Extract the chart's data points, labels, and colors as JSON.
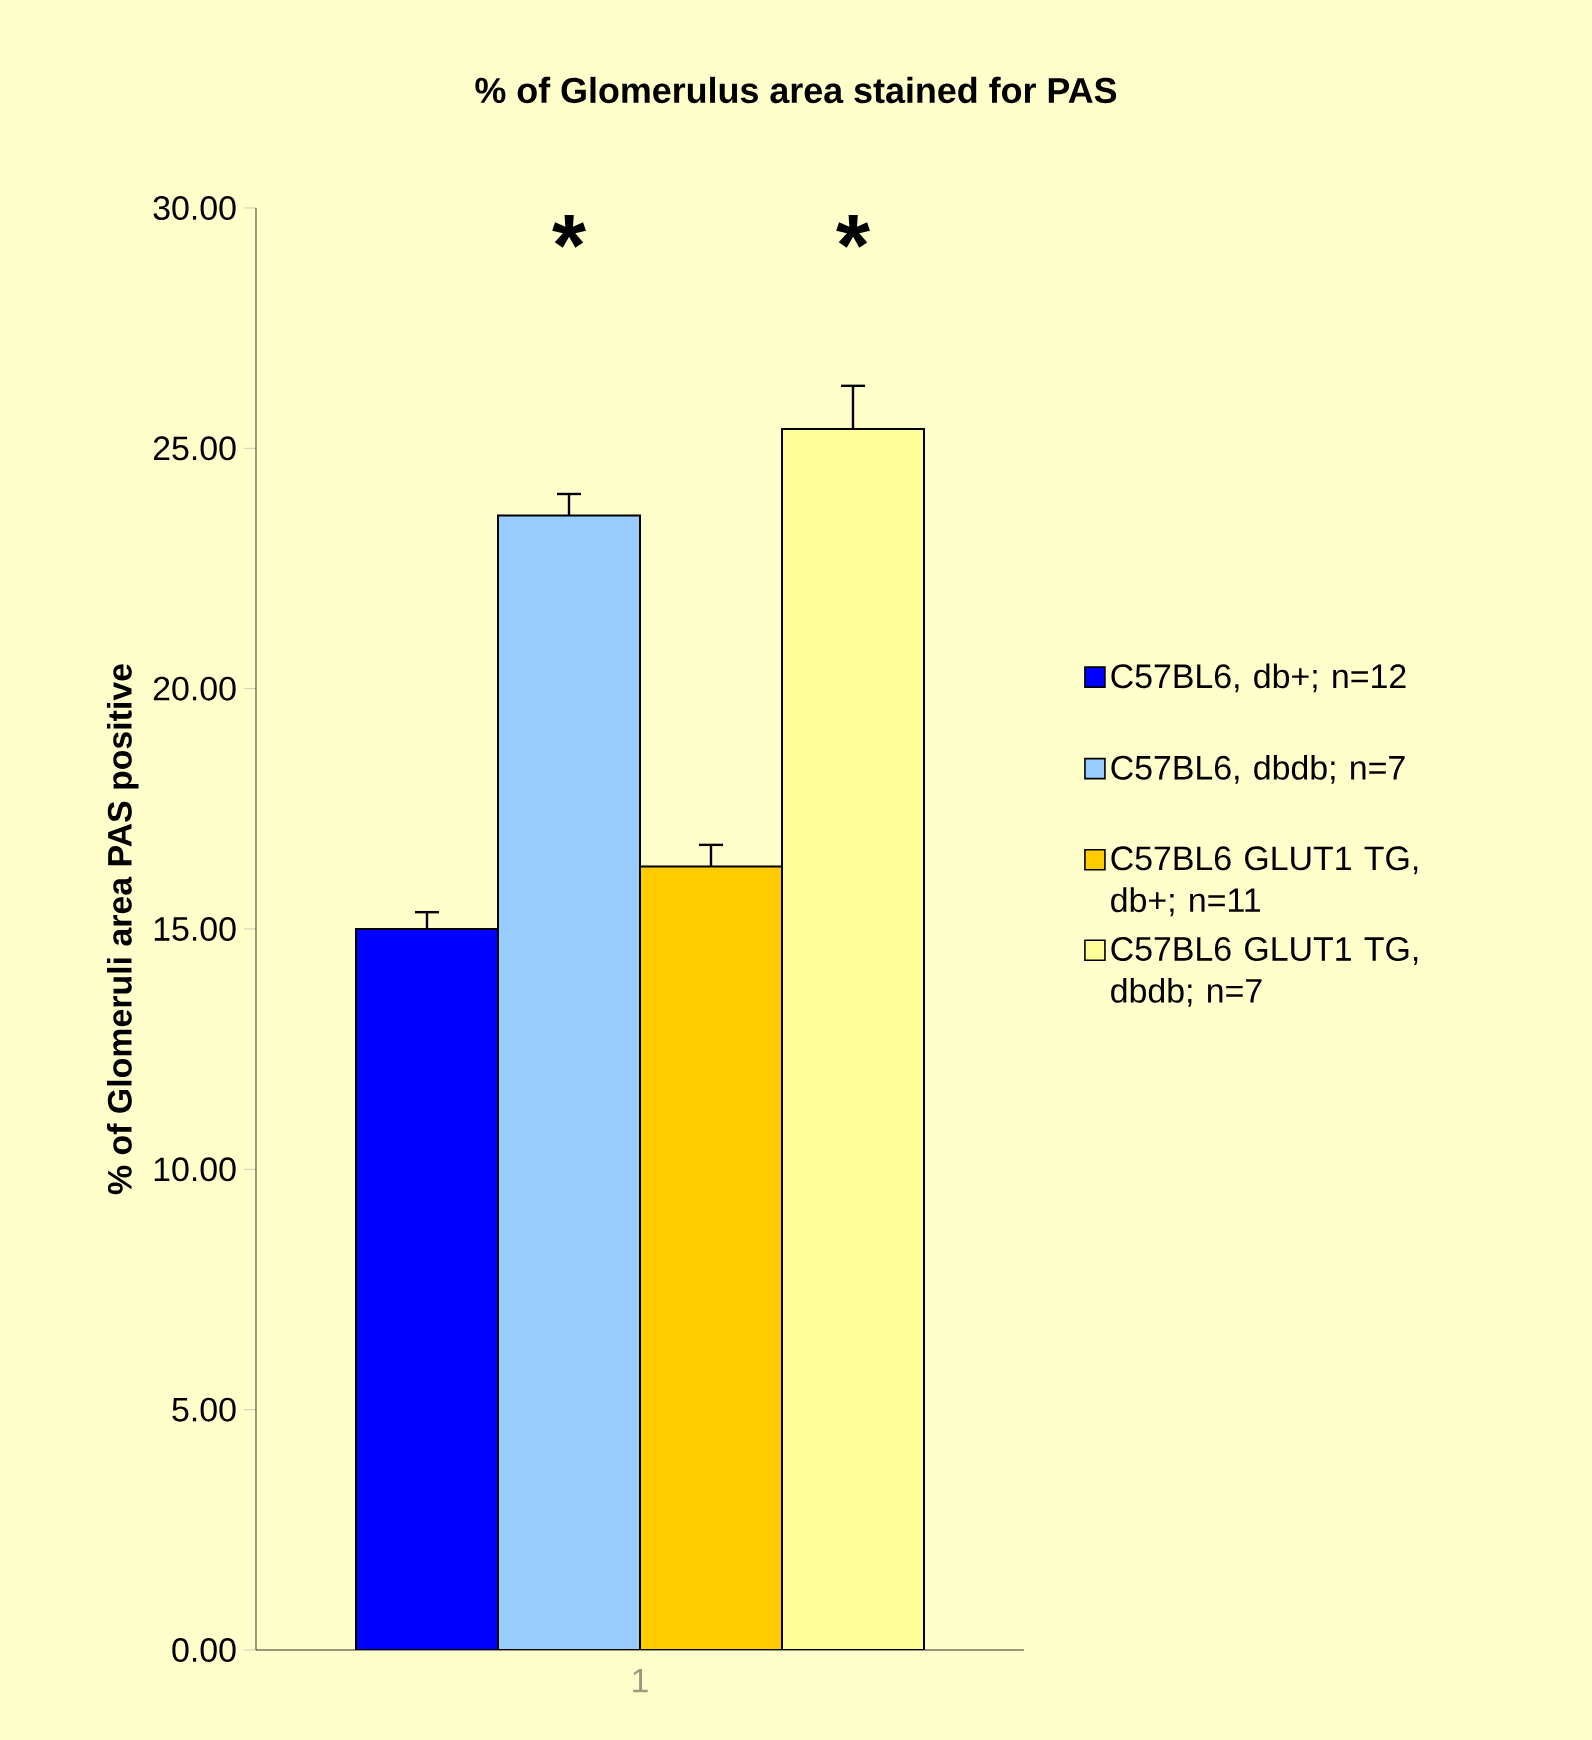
{
  "chart_data": {
    "type": "bar",
    "title": "% of Glomerulus area stained for PAS",
    "ylabel": "% of Glomeruli area PAS positive",
    "categories": [
      "1"
    ],
    "series": [
      {
        "name": "C57BL6, db+; n=12",
        "color": "#0000ff",
        "values": [
          15.0
        ],
        "errors": [
          0.35
        ]
      },
      {
        "name": "C57BL6, dbdb; n=7",
        "color": "#99ccff",
        "values": [
          23.6
        ],
        "errors": [
          0.45
        ]
      },
      {
        "name": "C57BL6 GLUT1 TG, db+; n=11",
        "color": "#ffcc00",
        "values": [
          16.3
        ],
        "errors": [
          0.45
        ]
      },
      {
        "name": "C57BL6 GLUT1 TG, dbdb; n=7",
        "color": "#ffff99",
        "values": [
          25.4
        ],
        "errors": [
          0.9
        ]
      }
    ],
    "annotations": [
      "*",
      "*"
    ],
    "ylim": [
      0,
      30
    ],
    "yticks": [
      {
        "value": 0,
        "label": "0.00"
      },
      {
        "value": 5,
        "label": "5.00"
      },
      {
        "value": 10,
        "label": "10.00"
      },
      {
        "value": 15,
        "label": "15.00"
      },
      {
        "value": 20,
        "label": "20.00"
      },
      {
        "value": 25,
        "label": "25.00"
      },
      {
        "value": 30,
        "label": "30.00"
      }
    ],
    "grid": false,
    "legend": "right"
  }
}
